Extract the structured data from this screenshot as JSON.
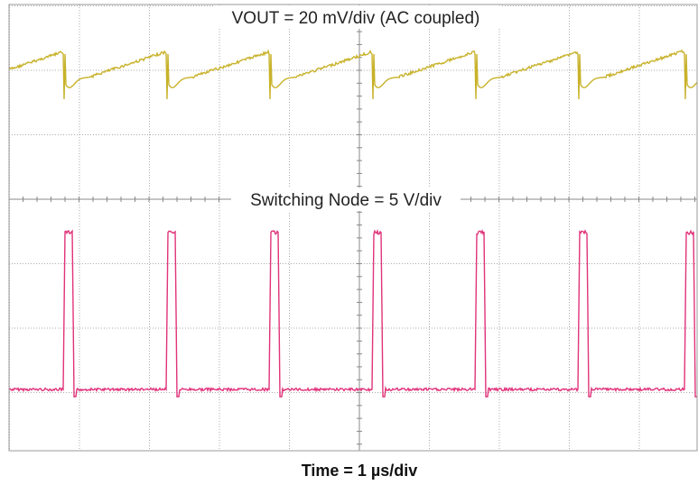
{
  "chart_data": {
    "type": "oscilloscope",
    "title": "VOUT = 20 mV/div (AC coupled)",
    "subtitle": "Switching Node = 5 V/div",
    "x_label": "Time = 1 µs/div"
  }
}
